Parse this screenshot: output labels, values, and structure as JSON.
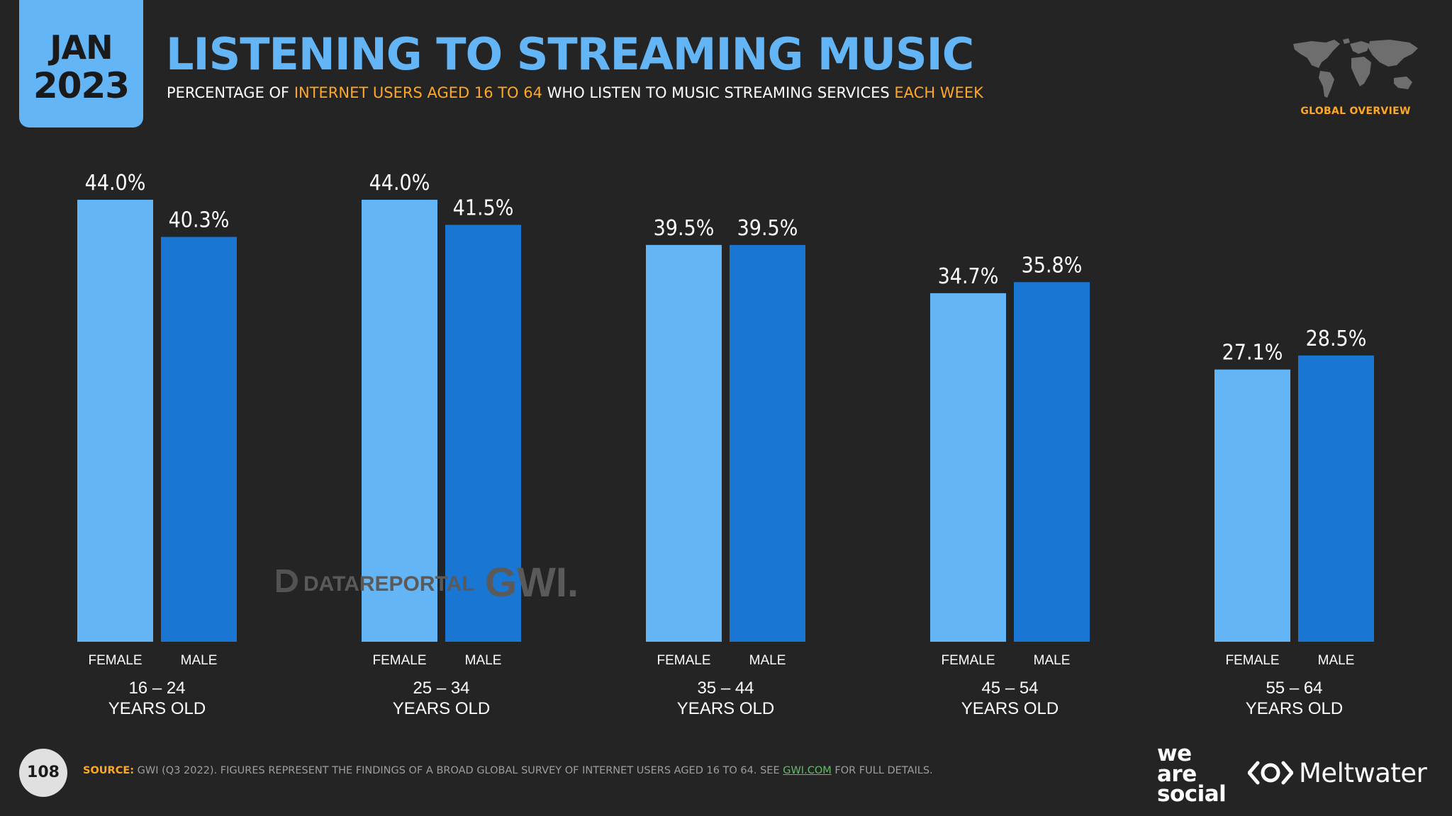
{
  "header": {
    "date_month": "JAN",
    "date_year": "2023",
    "title": "LISTENING TO STREAMING MUSIC",
    "subtitle_parts": [
      "PERCENTAGE OF ",
      "INTERNET USERS AGED 16 TO 64",
      " WHO LISTEN TO MUSIC STREAMING SERVICES ",
      "EACH WEEK"
    ],
    "region_label": "GLOBAL OVERVIEW"
  },
  "watermark": {
    "brand_1": "DATAREPORTAL",
    "brand_2": "GWI."
  },
  "footer": {
    "page_number": "108",
    "source_label": "SOURCE:",
    "source_text": " GWI (Q3 2022). FIGURES REPRESENT THE FINDINGS OF A BROAD GLOBAL SURVEY OF INTERNET USERS AGED 16 TO 64. SEE ",
    "source_link": "GWI.COM",
    "source_tail": " FOR FULL DETAILS.",
    "partner_1": "we are social",
    "partner_2": "Meltwater"
  },
  "colors": {
    "background": "#242424",
    "female": "#64b5f6",
    "male": "#1976d2",
    "accent": "#ffa726"
  },
  "chart_data": {
    "type": "bar",
    "title": "LISTENING TO STREAMING MUSIC",
    "xlabel": "",
    "ylabel": "",
    "ylim": [
      0,
      44
    ],
    "grid": false,
    "categories": [
      {
        "line1": "16 – 24",
        "line2": "YEARS OLD"
      },
      {
        "line1": "25 – 34",
        "line2": "YEARS OLD"
      },
      {
        "line1": "35 – 44",
        "line2": "YEARS OLD"
      },
      {
        "line1": "45 – 54",
        "line2": "YEARS OLD"
      },
      {
        "line1": "55 – 64",
        "line2": "YEARS OLD"
      }
    ],
    "series": [
      {
        "name": "FEMALE",
        "values": [
          44.0,
          44.0,
          39.5,
          34.7,
          27.1
        ]
      },
      {
        "name": "MALE",
        "values": [
          40.3,
          41.5,
          39.5,
          35.8,
          28.5
        ]
      }
    ],
    "value_suffix": "%"
  }
}
